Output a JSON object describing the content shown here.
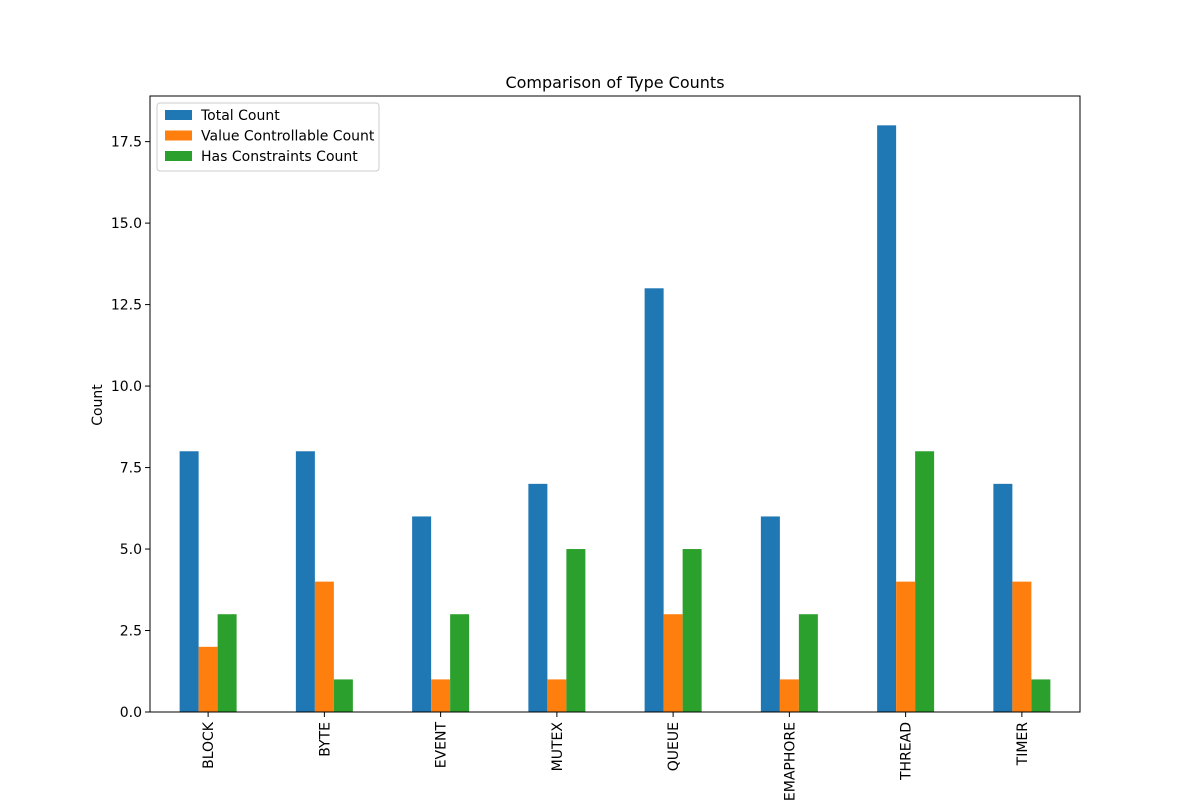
{
  "chart_data": {
    "type": "bar",
    "title": "Comparison of Type Counts",
    "xlabel": "",
    "ylabel": "Count",
    "categories": [
      "BLOCK",
      "BYTE",
      "EVENT",
      "MUTEX",
      "QUEUE",
      "SEMAPHORE",
      "THREAD",
      "TIMER"
    ],
    "series": [
      {
        "name": "Total Count",
        "color": "#1f77b4",
        "values": [
          8,
          8,
          6,
          7,
          13,
          6,
          18,
          7
        ]
      },
      {
        "name": "Value Controllable Count",
        "color": "#ff7f0e",
        "values": [
          2,
          4,
          1,
          1,
          3,
          1,
          4,
          4
        ]
      },
      {
        "name": "Has Constraints Count",
        "color": "#2ca02c",
        "values": [
          3,
          1,
          3,
          5,
          5,
          3,
          8,
          1
        ]
      }
    ],
    "ylim": [
      0,
      18.9
    ],
    "yticks": [
      "0.0",
      "2.5",
      "5.0",
      "7.5",
      "10.0",
      "12.5",
      "15.0",
      "17.5"
    ],
    "legend_position": "upper-left",
    "grid": false
  }
}
